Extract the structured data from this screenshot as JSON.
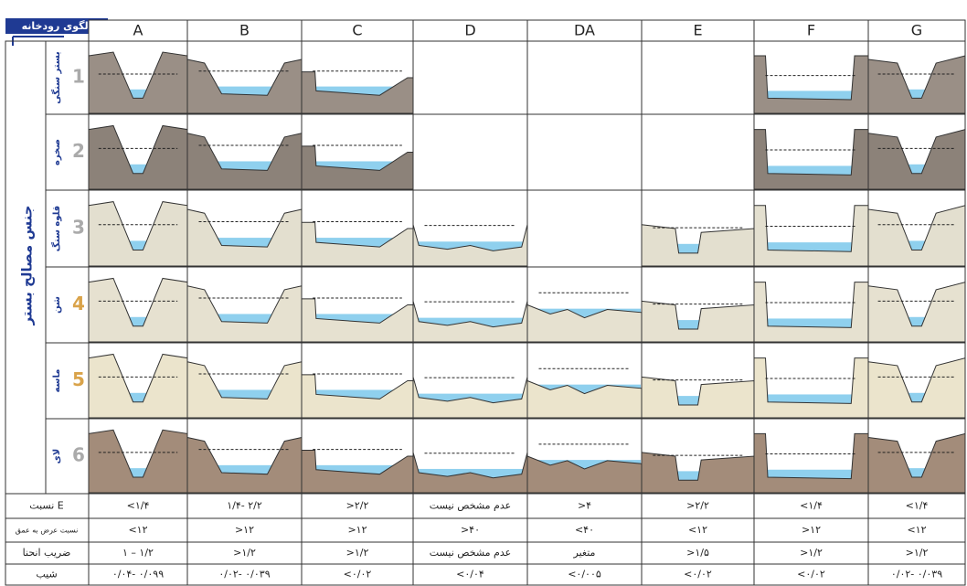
{
  "header": {
    "title": "الگوی رودخانه",
    "columns": [
      "A",
      "B",
      "C",
      "D",
      "DA",
      "E",
      "F",
      "G"
    ]
  },
  "side_label": "جنس مصالح بستر",
  "rows": [
    {
      "number": "1",
      "label": "بستر سنگی"
    },
    {
      "number": "2",
      "label": "صخره"
    },
    {
      "number": "3",
      "label": "قلوه سنگ"
    },
    {
      "number": "4",
      "label": "شن"
    },
    {
      "number": "5",
      "label": "ماسه"
    },
    {
      "number": "6",
      "label": "لای"
    }
  ],
  "table": {
    "rows": [
      {
        "label": "نسبت E",
        "cells": [
          "<۱/۴",
          "۱/۴- ۲/۲",
          ">۲/۲",
          "عدم مشخص نیست",
          ">۴",
          ">۲/۲",
          "<۱/۴",
          "<۱/۴"
        ]
      },
      {
        "label": "نسبت عرض به عمق",
        "cells": [
          "<۱۲",
          ">۱۲",
          ">۱۲",
          ">۴۰",
          "<۴۰",
          "<۱۲",
          ">۱۲",
          "<۱۲"
        ]
      },
      {
        "label": "ضریب انحنا",
        "cells": [
          "۱ – ۱/۲",
          ">۱/۲",
          ">۱/۲",
          "عدم مشخص نیست",
          "متغیر",
          ">۱/۵",
          ">۱/۲",
          ">۱/۲"
        ]
      },
      {
        "label": "شیب",
        "cells": [
          "۰/۰۴- ۰/۰۹۹",
          "۰/۰۲- ۰/۰۳۹",
          "<۰/۰۲",
          "<۰/۰۴",
          "<۰/۰۰۵",
          "<۰/۰۲",
          "<۰/۰۲",
          "۰/۰۲- ۰/۰۳۹"
        ]
      }
    ]
  }
}
